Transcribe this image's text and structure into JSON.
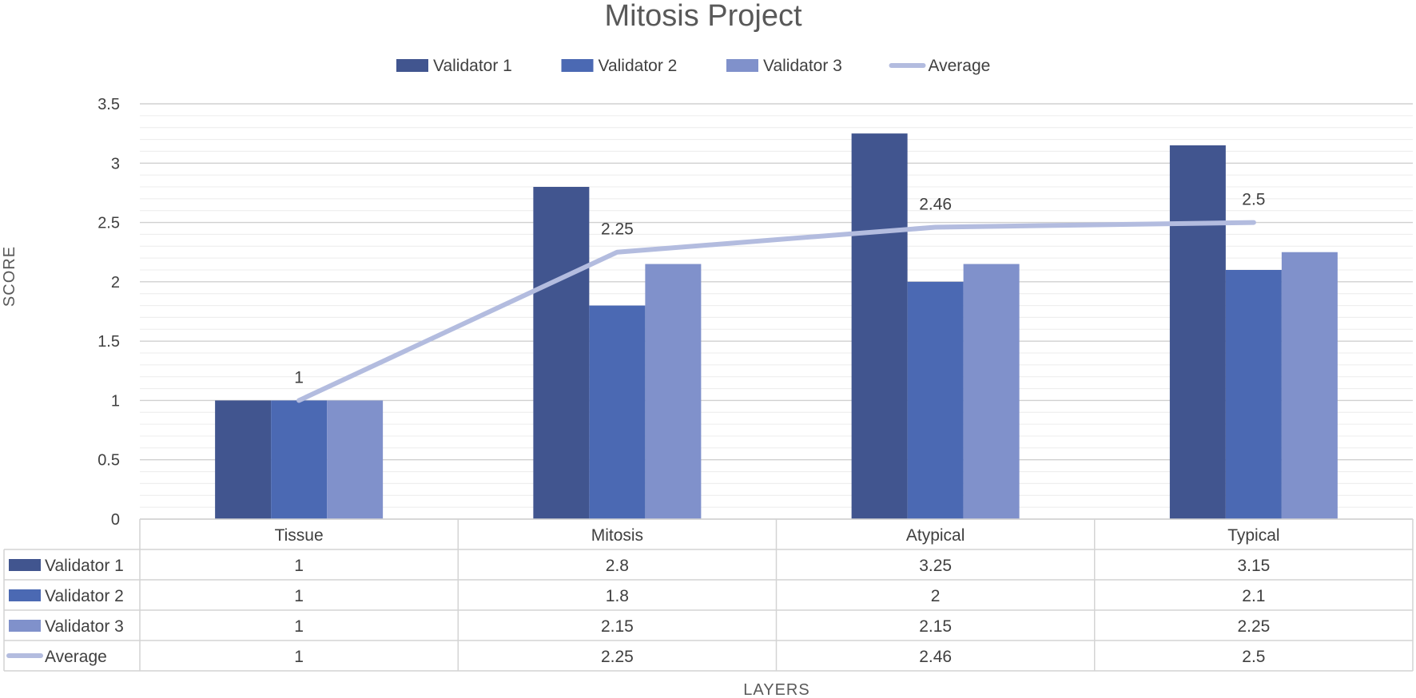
{
  "chart_data": {
    "type": "bar",
    "title": "Mitosis Project",
    "xlabel": "LAYERS",
    "ylabel": "SCORE",
    "categories": [
      "Tissue",
      "Mitosis",
      "Atypical",
      "Typical"
    ],
    "ylim": [
      0,
      3.5
    ],
    "yticks": [
      "0",
      "0.5",
      "1",
      "1.5",
      "2",
      "2.5",
      "3",
      "3.5"
    ],
    "legend_position": "top",
    "grid": true,
    "series": [
      {
        "name": "Validator 1",
        "kind": "bar",
        "color": "#41558f",
        "values": [
          1,
          2.8,
          3.25,
          3.15
        ],
        "labels": [
          "1",
          "2.8",
          "3.25",
          "3.15"
        ]
      },
      {
        "name": "Validator 2",
        "kind": "bar",
        "color": "#4b69b3",
        "values": [
          1,
          1.8,
          2,
          2.1
        ],
        "labels": [
          "1",
          "1.8",
          "2",
          "2.1"
        ]
      },
      {
        "name": "Validator 3",
        "kind": "bar",
        "color": "#8091cb",
        "values": [
          1,
          2.15,
          2.15,
          2.25
        ],
        "labels": [
          "1",
          "2.15",
          "2.15",
          "2.25"
        ]
      },
      {
        "name": "Average",
        "kind": "line",
        "color": "#b3bcdf",
        "values": [
          1,
          2.25,
          2.46,
          2.5
        ],
        "labels": [
          "1",
          "2.25",
          "2.46",
          "2.5"
        ]
      }
    ]
  }
}
